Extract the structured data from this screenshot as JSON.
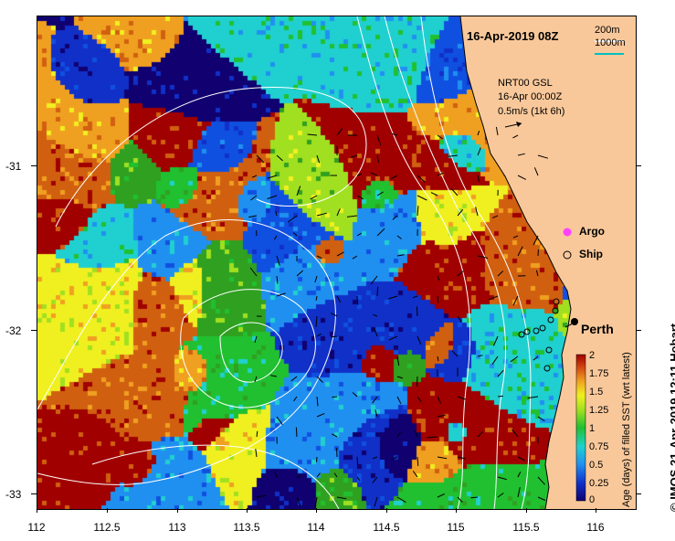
{
  "title": "16-Apr-2019 08Z",
  "scale_legend": {
    "label_a": "200m",
    "label_b": "1000m"
  },
  "current_info": {
    "line1": "NRT00 GSL",
    "line2": "16-Apr 00:00Z",
    "line3": "0.5m/s (1kt 6h)"
  },
  "legend": {
    "argo": "Argo",
    "ship": "Ship"
  },
  "city": "Perth",
  "x_ticks": [
    "112",
    "112.5",
    "113",
    "113.5",
    "114",
    "114.5",
    "115",
    "115.5",
    "116"
  ],
  "y_ticks": [
    "-31",
    "-32",
    "-33"
  ],
  "colorbar": {
    "title": "Age (days) of filled SST (wrt latest)",
    "ticks": [
      "2",
      "1.75",
      "1.5",
      "1.25",
      "1",
      "0.75",
      "0.5",
      "0.25",
      "0"
    ]
  },
  "credit": "© IMOS 21-Apr-2019 12:11 Hobart",
  "colors": {
    "land": "#f9c89a",
    "contour": "#ffffff",
    "ocean_deep": "#1040c8"
  }
}
